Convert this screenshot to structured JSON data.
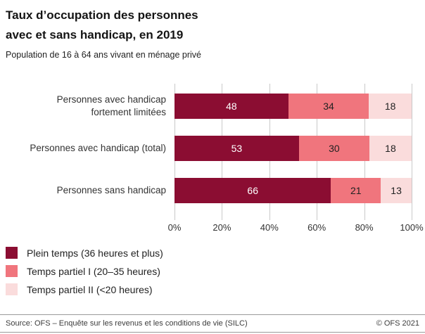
{
  "header": {
    "title_lines": [
      "Taux d’occupation des personnes",
      "avec et sans handicap, en 2019"
    ],
    "subtitle": "Population de 16 à 64 ans vivant en ménage privé"
  },
  "chart_data": {
    "type": "bar",
    "orientation": "horizontal",
    "stacked": true,
    "grid": true,
    "legend_position": "bottom-left",
    "xlim": [
      0,
      100
    ],
    "x_ticks": [
      "0%",
      "20%",
      "40%",
      "60%",
      "80%",
      "100%"
    ],
    "categories": [
      "Personnes avec handicap\nfortement limitées",
      "Personnes avec handicap (total)",
      "Personnes sans handicap"
    ],
    "series": [
      {
        "name": "Plein temps (36 heures et plus)",
        "color": "#8b0d32",
        "value_color": "#ffffff",
        "values": [
          48,
          53,
          66
        ]
      },
      {
        "name": "Temps partiel I (20–35 heures)",
        "color": "#f0757d",
        "value_color": "#222222",
        "values": [
          34,
          30,
          21
        ]
      },
      {
        "name": "Temps partiel II (<20 heures)",
        "color": "#fadcdc",
        "value_color": "#222222",
        "values": [
          18,
          18,
          13
        ]
      }
    ]
  },
  "footer": {
    "source": "Source: OFS – Enquête sur les revenus et les conditions de vie (SILC)",
    "copyright": "© OFS 2021"
  }
}
